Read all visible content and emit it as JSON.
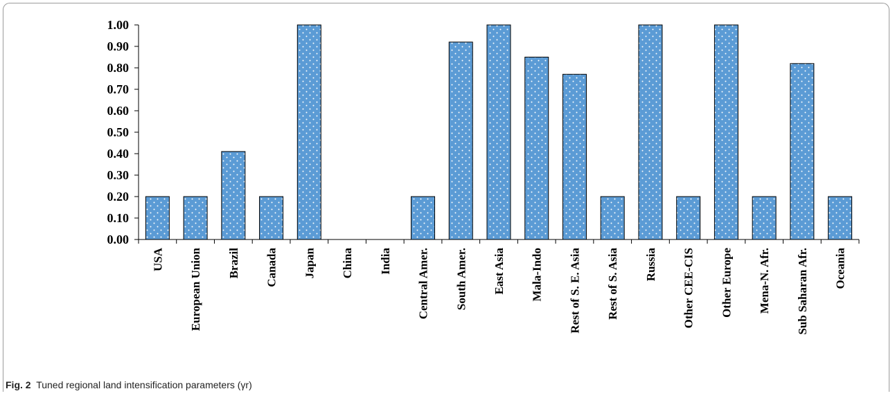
{
  "caption": {
    "label": "Fig. 2",
    "text": "Tuned regional land intensification parameters (γr)"
  },
  "chart_data": {
    "type": "bar",
    "title": "",
    "xlabel": "",
    "ylabel": "",
    "ylim": [
      0,
      1
    ],
    "yticks": [
      "0.00",
      "0.10",
      "0.20",
      "0.30",
      "0.40",
      "0.50",
      "0.60",
      "0.70",
      "0.80",
      "0.90",
      "1.00"
    ],
    "grid": false,
    "legend": "none",
    "bar_color": "#5b9bd5",
    "bar_pattern": "white-dots",
    "categories": [
      "USA",
      "European Union",
      "Brazil",
      "Canada",
      "Japan",
      "China",
      "India",
      "Central Amer.",
      "South Amer.",
      "East Asia",
      "Mala-Indo",
      "Rest of S. E. Asia",
      "Rest of S. Asia",
      "Russia",
      "Other CEE-CIS",
      "Other Europe",
      "Mena-N. Afr.",
      "Sub Saharan Afr.",
      "Oceania"
    ],
    "values": [
      0.2,
      0.2,
      0.41,
      0.2,
      1.0,
      0.0,
      0.0,
      0.2,
      0.92,
      1.0,
      0.85,
      0.77,
      0.2,
      1.0,
      0.2,
      1.0,
      0.2,
      0.82,
      0.2
    ]
  }
}
